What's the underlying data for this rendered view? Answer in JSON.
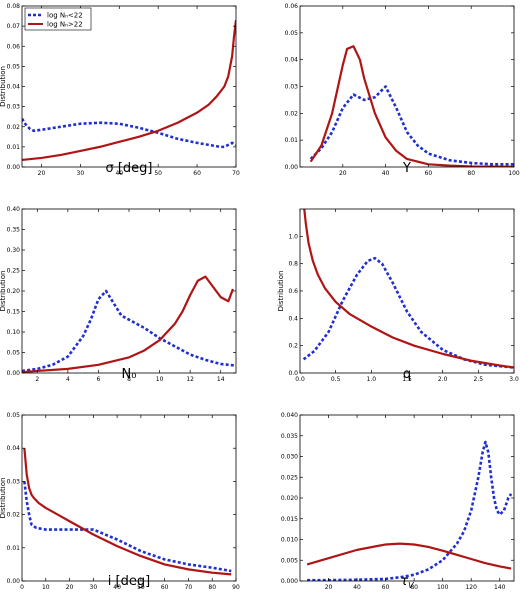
{
  "colors": {
    "low": "#1f2fd1",
    "high": "#b01515"
  },
  "chart_data": [
    {
      "type": "line",
      "xlabel": "σ [deg]",
      "ylabel": "Distribution",
      "xlim": [
        15,
        70
      ],
      "ylim": [
        0,
        0.08
      ],
      "xticks": [
        20,
        30,
        40,
        50,
        60,
        70
      ],
      "yticks": [
        0.0,
        0.01,
        0.02,
        0.03,
        0.04,
        0.05,
        0.06,
        0.07,
        0.08
      ],
      "ytick_labels": [
        "0.00",
        "0.01",
        "0.02",
        "0.03",
        "0.04",
        "0.05",
        "0.06",
        "0.07",
        "0.08"
      ],
      "legend": {
        "placement": "top-left",
        "entries": [
          "log Nₙ<22",
          "log Nₙ>22"
        ]
      },
      "series": [
        {
          "name": "log NH<22",
          "style": "dashed",
          "x": [
            15,
            16,
            17,
            18,
            20,
            25,
            30,
            35,
            40,
            45,
            50,
            55,
            60,
            63,
            66,
            67,
            68,
            69,
            70
          ],
          "y": [
            0.024,
            0.021,
            0.019,
            0.018,
            0.0185,
            0.02,
            0.0215,
            0.022,
            0.0215,
            0.0195,
            0.017,
            0.014,
            0.012,
            0.011,
            0.01,
            0.01,
            0.011,
            0.012,
            0.011
          ]
        },
        {
          "name": "log NH>22",
          "style": "solid",
          "x": [
            15,
            20,
            25,
            30,
            35,
            40,
            45,
            50,
            55,
            60,
            63,
            65,
            67,
            68,
            69,
            69.5,
            70
          ],
          "y": [
            0.0035,
            0.0045,
            0.006,
            0.008,
            0.01,
            0.0125,
            0.015,
            0.018,
            0.022,
            0.027,
            0.031,
            0.035,
            0.04,
            0.045,
            0.055,
            0.065,
            0.073
          ]
        }
      ]
    },
    {
      "type": "line",
      "xlabel": "Y",
      "ylabel": "",
      "xlim": [
        0,
        100
      ],
      "ylim": [
        0,
        0.06
      ],
      "xticks": [
        20,
        40,
        60,
        80,
        100
      ],
      "yticks": [
        0.0,
        0.01,
        0.02,
        0.03,
        0.04,
        0.05,
        0.06
      ],
      "ytick_labels": [
        "0.00",
        "0.01",
        "0.02",
        "0.03",
        "0.04",
        "0.05",
        "0.06"
      ],
      "series": [
        {
          "name": "log NH<22",
          "style": "dashed",
          "x": [
            5,
            10,
            15,
            20,
            25,
            30,
            35,
            40,
            45,
            50,
            55,
            60,
            70,
            80,
            90,
            100
          ],
          "y": [
            0.003,
            0.007,
            0.013,
            0.022,
            0.027,
            0.025,
            0.026,
            0.03,
            0.022,
            0.013,
            0.008,
            0.005,
            0.0025,
            0.0015,
            0.001,
            0.001
          ]
        },
        {
          "name": "log NH>22",
          "style": "solid",
          "x": [
            5,
            10,
            15,
            20,
            22,
            25,
            28,
            30,
            35,
            40,
            45,
            50,
            60,
            70,
            80,
            100
          ],
          "y": [
            0.002,
            0.008,
            0.02,
            0.038,
            0.044,
            0.045,
            0.04,
            0.033,
            0.02,
            0.011,
            0.006,
            0.003,
            0.001,
            0.0005,
            0.0002,
            0.0001
          ]
        }
      ]
    },
    {
      "type": "line",
      "xlabel": "N₀",
      "ylabel": "Distribution",
      "xlim": [
        1,
        15
      ],
      "ylim": [
        0,
        0.4
      ],
      "xticks": [
        2,
        4,
        6,
        8,
        10,
        12,
        14
      ],
      "yticks": [
        0.0,
        0.05,
        0.1,
        0.15,
        0.2,
        0.25,
        0.3,
        0.35,
        0.4
      ],
      "ytick_labels": [
        "0.00",
        "0.05",
        "0.10",
        "0.15",
        "0.20",
        "0.25",
        "0.30",
        "0.35",
        "0.40"
      ],
      "series": [
        {
          "name": "log NH<22",
          "style": "dashed",
          "x": [
            1,
            2,
            3,
            4,
            5,
            5.5,
            6,
            6.5,
            7,
            7.5,
            8,
            9,
            10,
            11,
            12,
            13,
            14,
            15
          ],
          "y": [
            0.005,
            0.01,
            0.02,
            0.04,
            0.09,
            0.13,
            0.18,
            0.2,
            0.17,
            0.14,
            0.13,
            0.11,
            0.085,
            0.065,
            0.045,
            0.032,
            0.022,
            0.018
          ]
        },
        {
          "name": "log NH>22",
          "style": "solid",
          "x": [
            1,
            2,
            4,
            6,
            8,
            9,
            10,
            11,
            11.5,
            12,
            12.5,
            13,
            13.5,
            14,
            14.5,
            14.8
          ],
          "y": [
            0.002,
            0.005,
            0.01,
            0.02,
            0.038,
            0.055,
            0.08,
            0.12,
            0.15,
            0.19,
            0.225,
            0.235,
            0.21,
            0.185,
            0.175,
            0.205
          ]
        }
      ]
    },
    {
      "type": "line",
      "xlabel": "q",
      "ylabel": "Distribution",
      "xlim": [
        0,
        3.0
      ],
      "ylim": [
        0,
        1.2
      ],
      "xticks": [
        0.0,
        0.5,
        1.0,
        1.5,
        2.0,
        2.5,
        3.0
      ],
      "xtick_labels": [
        "0.0",
        "0.5",
        "1.0",
        "1.5",
        "2.0",
        "2.5",
        "3.0"
      ],
      "yticks": [
        0.0,
        0.2,
        0.4,
        0.6,
        0.8,
        1.0
      ],
      "ytick_labels": [
        "0.0",
        "0.2",
        "0.4",
        "0.6",
        "0.8",
        "1.0"
      ],
      "series": [
        {
          "name": "log NH<22",
          "style": "dashed",
          "x": [
            0.05,
            0.2,
            0.4,
            0.6,
            0.8,
            0.95,
            1.05,
            1.15,
            1.3,
            1.5,
            1.7,
            2.0,
            2.3,
            2.6,
            3.0
          ],
          "y": [
            0.1,
            0.16,
            0.3,
            0.53,
            0.72,
            0.82,
            0.84,
            0.8,
            0.66,
            0.45,
            0.3,
            0.17,
            0.1,
            0.06,
            0.04
          ]
        },
        {
          "name": "log NH>22",
          "style": "solid",
          "x": [
            0.05,
            0.08,
            0.12,
            0.18,
            0.25,
            0.35,
            0.5,
            0.7,
            1.0,
            1.3,
            1.6,
            2.0,
            2.4,
            2.8,
            3.0
          ],
          "y": [
            1.25,
            1.1,
            0.95,
            0.82,
            0.72,
            0.62,
            0.52,
            0.43,
            0.34,
            0.26,
            0.2,
            0.14,
            0.09,
            0.055,
            0.04
          ]
        }
      ]
    },
    {
      "type": "line",
      "xlabel": "i [deg]",
      "ylabel": "Distribution",
      "xlim": [
        0,
        90
      ],
      "ylim": [
        0,
        0.05
      ],
      "xticks": [
        0,
        10,
        20,
        30,
        40,
        50,
        60,
        70,
        80,
        90
      ],
      "yticks": [
        0.0,
        0.01,
        0.02,
        0.03,
        0.04,
        0.05
      ],
      "ytick_labels": [
        "0.00",
        "0.01",
        "0.02",
        "0.03",
        "0.04",
        "0.05"
      ],
      "series": [
        {
          "name": "log NH<22",
          "style": "dashed",
          "x": [
            1,
            2,
            3,
            4,
            6,
            10,
            20,
            30,
            35,
            40,
            50,
            60,
            70,
            80,
            88
          ],
          "y": [
            0.03,
            0.024,
            0.02,
            0.017,
            0.016,
            0.0155,
            0.0155,
            0.0155,
            0.014,
            0.0125,
            0.009,
            0.0065,
            0.005,
            0.004,
            0.003
          ]
        },
        {
          "name": "log NH>22",
          "style": "solid",
          "x": [
            1,
            2,
            3,
            4,
            5,
            7,
            10,
            15,
            20,
            25,
            30,
            40,
            50,
            60,
            70,
            80,
            88
          ],
          "y": [
            0.04,
            0.032,
            0.028,
            0.026,
            0.025,
            0.0235,
            0.022,
            0.02,
            0.018,
            0.016,
            0.014,
            0.0105,
            0.0075,
            0.005,
            0.0035,
            0.0025,
            0.002
          ]
        }
      ]
    },
    {
      "type": "line",
      "xlabel": "τ_V",
      "ylabel": "",
      "xlim": [
        0,
        150
      ],
      "ylim": [
        0,
        0.04
      ],
      "xticks": [
        20,
        40,
        60,
        80,
        100,
        120,
        140
      ],
      "yticks": [
        0.0,
        0.005,
        0.01,
        0.015,
        0.02,
        0.025,
        0.03,
        0.035,
        0.04
      ],
      "ytick_labels": [
        "0.000",
        "0.005",
        "0.010",
        "0.015",
        "0.020",
        "0.025",
        "0.030",
        "0.035",
        "0.040"
      ],
      "series": [
        {
          "name": "log NH<22",
          "style": "dashed",
          "x": [
            5,
            20,
            40,
            60,
            70,
            80,
            90,
            100,
            110,
            115,
            120,
            125,
            128,
            130,
            132,
            134,
            136,
            138,
            140,
            143,
            146,
            148
          ],
          "y": [
            0.0002,
            0.0002,
            0.0003,
            0.0005,
            0.0009,
            0.0015,
            0.0028,
            0.005,
            0.009,
            0.012,
            0.017,
            0.025,
            0.031,
            0.0335,
            0.031,
            0.025,
            0.02,
            0.017,
            0.016,
            0.017,
            0.02,
            0.021
          ]
        },
        {
          "name": "log NH>22",
          "style": "solid",
          "x": [
            5,
            20,
            40,
            60,
            70,
            80,
            90,
            100,
            110,
            120,
            130,
            140,
            148
          ],
          "y": [
            0.004,
            0.0055,
            0.0075,
            0.0088,
            0.009,
            0.0088,
            0.0082,
            0.0073,
            0.0063,
            0.0053,
            0.0043,
            0.0035,
            0.003
          ]
        }
      ]
    }
  ]
}
